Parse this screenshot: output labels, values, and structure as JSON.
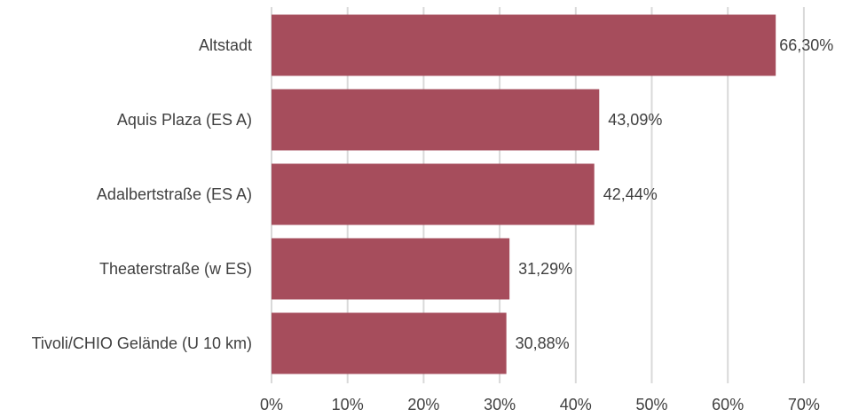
{
  "chart_data": {
    "type": "bar",
    "orientation": "horizontal",
    "categories": [
      "Altstadt",
      "Aquis Plaza (ES A)",
      "Adalbertstraße (ES A)",
      "Theaterstraße (w ES)",
      "Tivoli/CHIO Gelände (U 10 km)"
    ],
    "values": [
      66.3,
      43.09,
      42.44,
      31.29,
      30.88
    ],
    "data_labels": [
      "66,30%",
      "43,09%",
      "42,44%",
      "31,29%",
      "30,88%"
    ],
    "x_ticks": [
      0,
      10,
      20,
      30,
      40,
      50,
      60,
      70
    ],
    "x_tick_labels": [
      "0%",
      "10%",
      "20%",
      "30%",
      "40%",
      "50%",
      "60%",
      "70%"
    ],
    "xlim": [
      0,
      70
    ],
    "grid": "vertical",
    "legend": "none",
    "title": "",
    "xlabel": "",
    "ylabel": "",
    "colors": {
      "bar": "#a64d5c",
      "grid": "#d9d9d9",
      "text": "#404040"
    }
  }
}
